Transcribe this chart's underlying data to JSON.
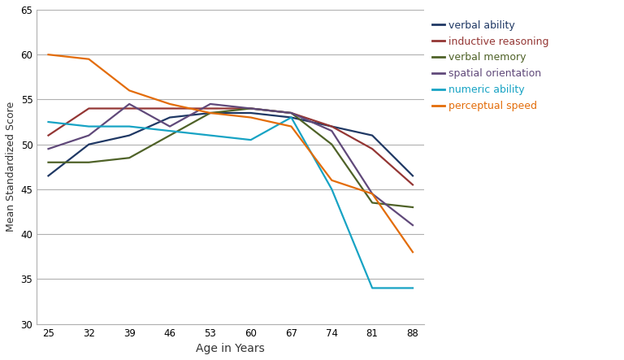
{
  "ages": [
    25,
    32,
    39,
    46,
    53,
    60,
    67,
    74,
    81,
    88
  ],
  "series": {
    "verbal ability": {
      "color": "#1f3864",
      "values": [
        46.5,
        50.0,
        51.0,
        53.0,
        53.5,
        53.5,
        53.0,
        52.0,
        51.0,
        46.5
      ]
    },
    "inductive reasoning": {
      "color": "#943634",
      "values": [
        51.0,
        54.0,
        54.0,
        54.0,
        54.0,
        54.0,
        53.5,
        52.0,
        49.5,
        45.5
      ]
    },
    "verbal memory": {
      "color": "#4f6228",
      "values": [
        48.0,
        48.0,
        48.5,
        51.0,
        53.5,
        54.0,
        53.5,
        50.0,
        43.5,
        43.0
      ]
    },
    "spatial orientation": {
      "color": "#60497a",
      "values": [
        49.5,
        51.0,
        54.5,
        52.0,
        54.5,
        54.0,
        53.5,
        51.5,
        44.5,
        41.0
      ]
    },
    "numeric ability": {
      "color": "#17a3c4",
      "values": [
        52.5,
        52.0,
        52.0,
        51.5,
        51.0,
        50.5,
        53.0,
        45.0,
        34.0,
        34.0
      ]
    },
    "perceptual speed": {
      "color": "#e36c09",
      "values": [
        60.0,
        59.5,
        56.0,
        54.5,
        53.5,
        53.0,
        52.0,
        46.0,
        44.5,
        38.0
      ]
    }
  },
  "xlabel": "Age in Years",
  "ylabel": "Mean Standardized Score",
  "ylim": [
    30,
    65
  ],
  "yticks": [
    30,
    35,
    40,
    45,
    50,
    55,
    60,
    65
  ],
  "xticks": [
    25,
    32,
    39,
    46,
    53,
    60,
    67,
    74,
    81,
    88
  ],
  "background_color": "#ffffff",
  "legend_order": [
    "verbal ability",
    "inductive reasoning",
    "verbal memory",
    "spatial orientation",
    "numeric ability",
    "perceptual speed"
  ]
}
